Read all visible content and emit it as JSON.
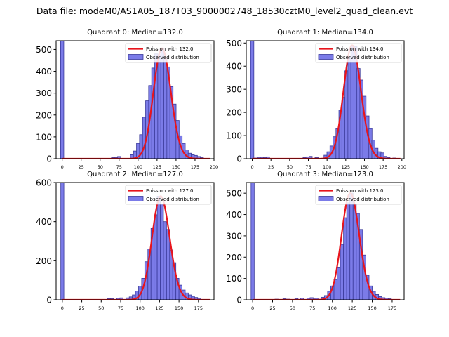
{
  "figure": {
    "suptitle": "Data file: modeM0/AS1A05_187T03_9000002748_18530cztM0_level2_quad_clean.evt"
  },
  "colors": {
    "bar_fill": "#7b7be8",
    "bar_edge": "#3a3a9a",
    "curve": "#e8141c",
    "axis": "#000000",
    "background": "#ffffff"
  },
  "chart_data": [
    {
      "type": "bar",
      "title": "Quadrant 0: Median=132.0",
      "xlim": [
        -8,
        200
      ],
      "ylim": [
        0,
        540
      ],
      "xticks": [
        0,
        25,
        50,
        75,
        100,
        125,
        150,
        175,
        200
      ],
      "yticks": [
        0,
        100,
        200,
        300,
        400,
        500
      ],
      "bin_width": 4.2,
      "spike": {
        "x": 0,
        "value": 540
      },
      "hist_bins": [
        [
          67,
          5
        ],
        [
          71,
          5
        ],
        [
          75,
          10
        ],
        [
          92,
          18
        ],
        [
          96,
          35
        ],
        [
          100,
          70
        ],
        [
          104,
          110
        ],
        [
          108,
          190
        ],
        [
          112,
          265
        ],
        [
          116,
          335
        ],
        [
          120,
          415
        ],
        [
          124,
          480
        ],
        [
          128,
          475
        ],
        [
          132,
          505
        ],
        [
          136,
          465
        ],
        [
          140,
          420
        ],
        [
          144,
          330
        ],
        [
          148,
          250
        ],
        [
          152,
          175
        ],
        [
          156,
          105
        ],
        [
          160,
          70
        ],
        [
          164,
          40
        ],
        [
          168,
          25
        ],
        [
          172,
          18
        ],
        [
          176,
          15
        ],
        [
          180,
          10
        ],
        [
          184,
          5
        ]
      ],
      "poisson_mean": 132.0,
      "legend": {
        "position": "top-right",
        "curve_label": "Poission with 132.0",
        "bars_label": "Observed distribution"
      }
    },
    {
      "type": "bar",
      "title": "Quadrant 1: Median=134.0",
      "xlim": [
        -8,
        203
      ],
      "ylim": [
        0,
        510
      ],
      "xticks": [
        0,
        25,
        50,
        75,
        100,
        125,
        150,
        175,
        200
      ],
      "yticks": [
        0,
        100,
        200,
        300,
        400,
        500
      ],
      "bin_width": 4.3,
      "spike": {
        "x": 0,
        "value": 510
      },
      "hist_bins": [
        [
          5,
          3
        ],
        [
          9,
          6
        ],
        [
          13,
          6
        ],
        [
          17,
          5
        ],
        [
          21,
          8
        ],
        [
          70,
          5
        ],
        [
          74,
          8
        ],
        [
          78,
          10
        ],
        [
          86,
          5
        ],
        [
          98,
          15
        ],
        [
          102,
          30
        ],
        [
          106,
          55
        ],
        [
          110,
          95
        ],
        [
          114,
          130
        ],
        [
          118,
          210
        ],
        [
          122,
          265
        ],
        [
          126,
          380
        ],
        [
          130,
          440
        ],
        [
          134,
          490
        ],
        [
          138,
          485
        ],
        [
          142,
          390
        ],
        [
          146,
          340
        ],
        [
          150,
          270
        ],
        [
          154,
          185
        ],
        [
          158,
          130
        ],
        [
          162,
          80
        ],
        [
          166,
          45
        ],
        [
          170,
          30
        ],
        [
          174,
          25
        ],
        [
          178,
          10
        ],
        [
          182,
          5
        ],
        [
          190,
          3
        ]
      ],
      "poisson_mean": 134.0,
      "legend": {
        "position": "top-right",
        "curve_label": "Poission with 134.0",
        "bars_label": "Observed distribution"
      }
    },
    {
      "type": "bar",
      "title": "Quadrant 2: Median=127.0",
      "xlim": [
        -8,
        195
      ],
      "ylim": [
        0,
        600
      ],
      "xticks": [
        0,
        25,
        50,
        75,
        100,
        125,
        150,
        175
      ],
      "yticks": [
        0,
        200,
        400,
        600
      ],
      "bin_width": 4.0,
      "spike": {
        "x": 0,
        "value": 600
      },
      "hist_bins": [
        [
          60,
          6
        ],
        [
          64,
          6
        ],
        [
          72,
          8
        ],
        [
          76,
          10
        ],
        [
          84,
          10
        ],
        [
          88,
          15
        ],
        [
          92,
          25
        ],
        [
          96,
          45
        ],
        [
          100,
          70
        ],
        [
          104,
          110
        ],
        [
          108,
          195
        ],
        [
          112,
          260
        ],
        [
          116,
          365
        ],
        [
          120,
          435
        ],
        [
          124,
          530
        ],
        [
          128,
          490
        ],
        [
          132,
          400
        ],
        [
          136,
          360
        ],
        [
          140,
          255
        ],
        [
          144,
          190
        ],
        [
          148,
          110
        ],
        [
          152,
          75
        ],
        [
          156,
          50
        ],
        [
          160,
          35
        ],
        [
          164,
          25
        ],
        [
          168,
          18
        ],
        [
          172,
          12
        ],
        [
          176,
          8
        ]
      ],
      "poisson_mean": 127.0,
      "legend": {
        "position": "top-right",
        "curve_label": "Poission with 127.0",
        "bars_label": "Observed distribution"
      }
    },
    {
      "type": "bar",
      "title": "Quadrant 3: Median=123.0",
      "xlim": [
        -8,
        190
      ],
      "ylim": [
        0,
        550
      ],
      "xticks": [
        0,
        25,
        50,
        75,
        100,
        125,
        150,
        175
      ],
      "yticks": [
        0,
        100,
        200,
        300,
        400,
        500
      ],
      "bin_width": 4.0,
      "spike": {
        "x": 0,
        "value": 550
      },
      "hist_bins": [
        [
          30,
          3
        ],
        [
          40,
          5
        ],
        [
          45,
          3
        ],
        [
          55,
          6
        ],
        [
          62,
          8
        ],
        [
          70,
          8
        ],
        [
          74,
          10
        ],
        [
          80,
          8
        ],
        [
          88,
          12
        ],
        [
          92,
          20
        ],
        [
          96,
          40
        ],
        [
          100,
          65
        ],
        [
          104,
          95
        ],
        [
          108,
          150
        ],
        [
          112,
          260
        ],
        [
          116,
          385
        ],
        [
          120,
          455
        ],
        [
          124,
          500
        ],
        [
          128,
          450
        ],
        [
          132,
          405
        ],
        [
          136,
          330
        ],
        [
          140,
          210
        ],
        [
          144,
          115
        ],
        [
          148,
          65
        ],
        [
          152,
          40
        ],
        [
          156,
          25
        ],
        [
          160,
          15
        ],
        [
          164,
          10
        ],
        [
          168,
          8
        ],
        [
          172,
          5
        ]
      ],
      "poisson_mean": 123.0,
      "legend": {
        "position": "top-right",
        "curve_label": "Poission with 123.0",
        "bars_label": "Observed distribution"
      }
    }
  ]
}
